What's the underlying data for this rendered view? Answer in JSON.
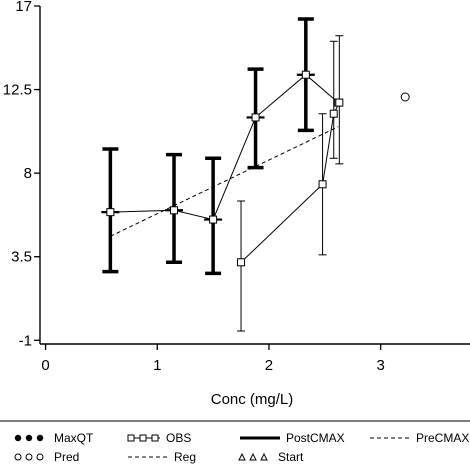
{
  "chart_data": {
    "type": "line",
    "title": "",
    "xlabel": "Conc (mg/L)",
    "ylabel": "",
    "xlim": [
      -0.05,
      3.8
    ],
    "ylim": [
      -1.2,
      17
    ],
    "x_ticks": [
      0,
      1,
      2,
      3
    ],
    "x_tick_labels": [
      "0",
      "1",
      "2",
      "3"
    ],
    "y_ticks": [
      -1,
      3.5,
      8,
      12.5,
      17
    ],
    "y_tick_labels": [
      "-1",
      "3.5",
      "8",
      "12.5",
      "17"
    ],
    "grid": false,
    "legend_position": "bottom",
    "series": [
      {
        "name": "MaxQT",
        "style": "bold-errorbars-filled-circles",
        "color": "#000000",
        "points": [
          {
            "x": 0.58,
            "y": 5.9,
            "lo": 2.7,
            "hi": 9.3
          },
          {
            "x": 1.15,
            "y": 6.0,
            "lo": 3.2,
            "hi": 9.0
          },
          {
            "x": 1.5,
            "y": 5.5,
            "lo": 2.6,
            "hi": 8.8
          },
          {
            "x": 1.88,
            "y": 11.0,
            "lo": 8.3,
            "hi": 13.6
          },
          {
            "x": 2.33,
            "y": 13.3,
            "lo": 10.3,
            "hi": 16.3
          }
        ]
      },
      {
        "name": "OBS",
        "style": "thin-errorbars-open-squares",
        "color": "#000000",
        "points": [
          {
            "x": 0.58,
            "y": 5.9
          },
          {
            "x": 1.15,
            "y": 6.0
          },
          {
            "x": 1.5,
            "y": 5.5
          },
          {
            "x": 1.88,
            "y": 11.0
          },
          {
            "x": 2.33,
            "y": 13.3
          },
          {
            "x": 2.62,
            "y": 11.8
          },
          {
            "x": 1.75,
            "y": 3.2,
            "lo": -0.5,
            "hi": 6.5
          },
          {
            "x": 2.48,
            "y": 7.4,
            "lo": 3.6,
            "hi": 11.2
          },
          {
            "x": 2.58,
            "y": 11.2,
            "lo": 8.8,
            "hi": 15.1
          },
          {
            "x": 2.63,
            "y": 11.8,
            "lo": 8.5,
            "hi": 15.4
          }
        ]
      },
      {
        "name": "PostCMAX",
        "style": "thin-line",
        "color": "#000000",
        "x": [
          1.75,
          2.48,
          2.58,
          2.63
        ],
        "y": [
          3.2,
          7.4,
          11.2,
          11.8
        ]
      },
      {
        "name": "PreCMAX",
        "style": "thin-line",
        "color": "#000000",
        "x": [
          0.58,
          1.15,
          1.5,
          1.88,
          2.33,
          2.62
        ],
        "y": [
          5.9,
          6.0,
          5.5,
          11.0,
          13.3,
          11.8
        ]
      },
      {
        "name": "Reg",
        "style": "dashed-line",
        "color": "#000000",
        "x": [
          0.58,
          2.62
        ],
        "y": [
          4.6,
          10.5
        ]
      },
      {
        "name": "Pred",
        "style": "open-circle",
        "color": "#000000",
        "x": [
          3.22
        ],
        "y": [
          12.1
        ]
      }
    ],
    "legend": [
      {
        "label": "MaxQT",
        "marker": "filled-circles"
      },
      {
        "label": "OBS",
        "marker": "open-squares-line"
      },
      {
        "label": "PostCMAX",
        "marker": "thick-line"
      },
      {
        "label": "PreCMAX",
        "marker": "dashed-line"
      },
      {
        "label": "Pred",
        "marker": "open-circles"
      },
      {
        "label": "Reg",
        "marker": "dashed-line"
      },
      {
        "label": "Start",
        "marker": "open-triangles"
      }
    ]
  }
}
